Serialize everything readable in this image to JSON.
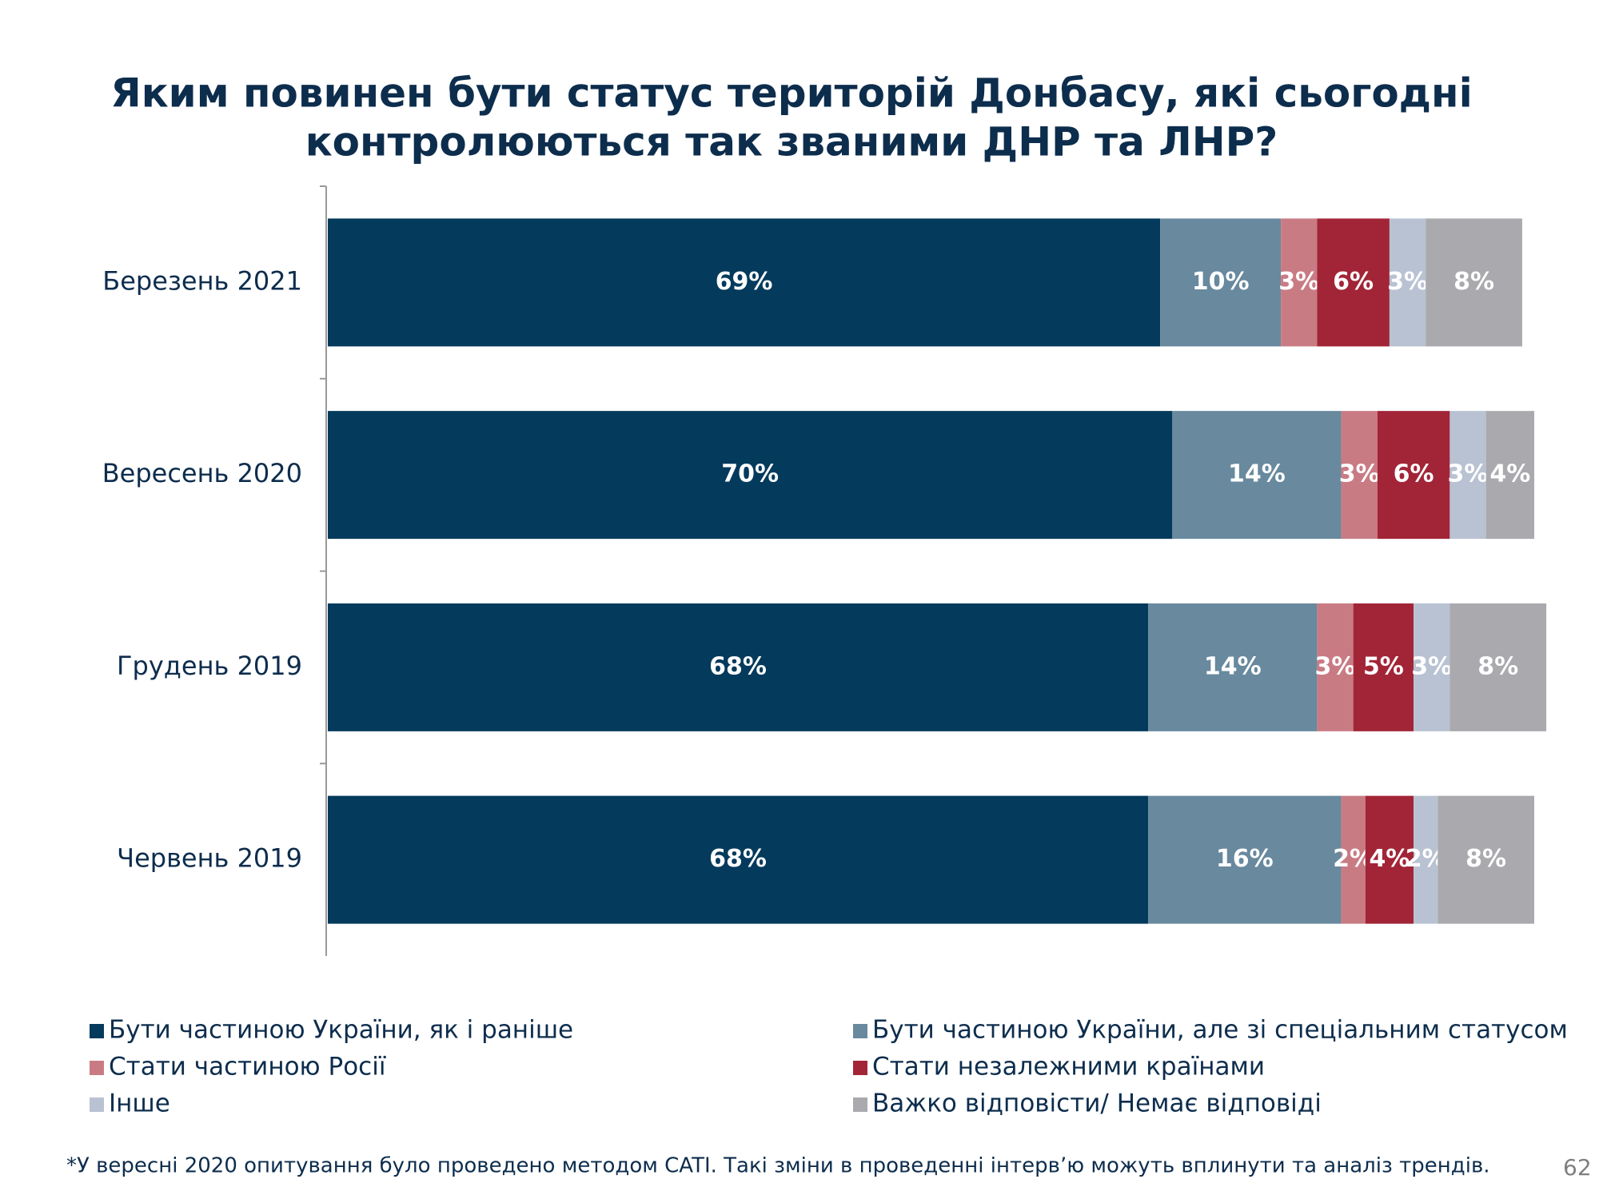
{
  "chart_data": {
    "type": "stacked-bar-horizontal",
    "title_lines": [
      "Яким повинен бути статус територій Донбасу, які сьогодні",
      "контролюються так званими ДНР та ЛНР?"
    ],
    "categories": [
      "Березень 2021",
      "Вересень 2020",
      "Грудень 2019",
      "Червень 2019"
    ],
    "xlim": [
      0,
      100
    ],
    "series": [
      {
        "name": "Бути частиною України, як і раніше",
        "color": "#043a5c",
        "values": [
          69,
          70,
          68,
          68
        ],
        "value_labels": [
          "69%",
          "70%",
          "68%",
          "68%"
        ]
      },
      {
        "name": "Бути частиною України, але зі спеціальним статусом",
        "color": "#68899e",
        "values": [
          10,
          14,
          14,
          16
        ],
        "value_labels": [
          "10%",
          "14%",
          "14%",
          "16%"
        ]
      },
      {
        "name": "Стати частиною Росії",
        "color": "#c97b84",
        "values": [
          3,
          3,
          3,
          2
        ],
        "value_labels": [
          "3%",
          "3%",
          "3%",
          "2%"
        ]
      },
      {
        "name": "Стати незалежними країнами",
        "color": "#a22537",
        "values": [
          6,
          6,
          5,
          4
        ],
        "value_labels": [
          "6%",
          "6%",
          "5%",
          "4%"
        ]
      },
      {
        "name": "Інше",
        "color": "#b8c2d2",
        "values": [
          3,
          3,
          3,
          2
        ],
        "value_labels": [
          "3%",
          "3%",
          "3%",
          "2%"
        ]
      },
      {
        "name": "Важко відповісти/ Немає відповіді",
        "color": "#a9a9ae",
        "values": [
          8,
          4,
          8,
          8
        ],
        "value_labels": [
          "8%",
          "4%",
          "8%",
          "8%"
        ]
      }
    ],
    "note": "*У вересні 2020 опитування було проведено методом CATI. Такі зміни в проведенні інтерв’ю можуть вплинути та аналіз трендів.",
    "page_number": "62"
  }
}
